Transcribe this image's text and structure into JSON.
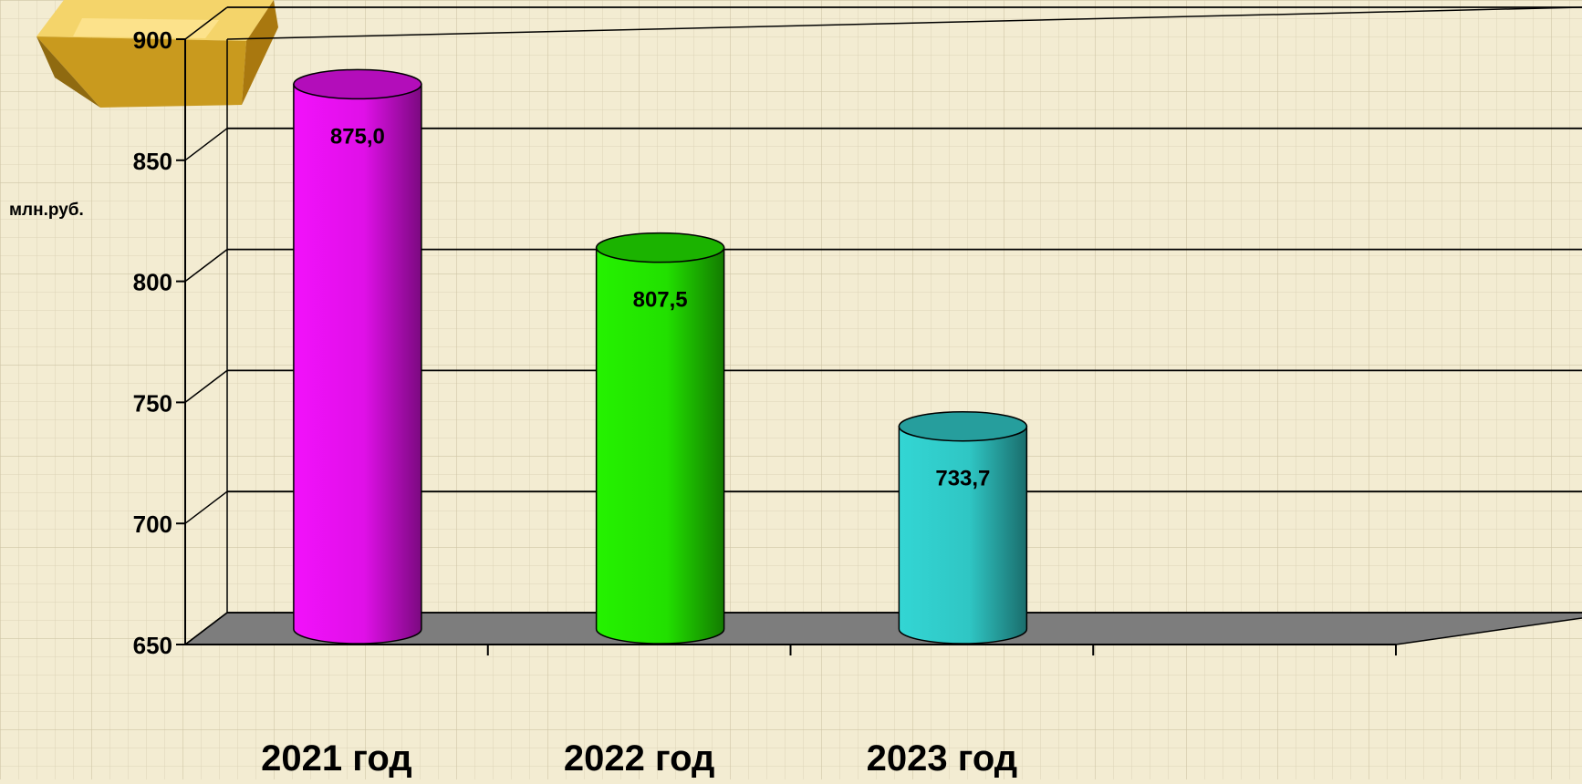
{
  "chart_data": {
    "type": "bar",
    "ylabel": "млн.руб.",
    "ylim": [
      650,
      900
    ],
    "yticks": [
      650,
      700,
      750,
      800,
      850,
      900
    ],
    "categories": [
      "2021 год",
      "2022 год",
      "2023 год"
    ],
    "values": [
      875.0,
      807.5,
      733.7
    ],
    "value_labels": [
      "875,0",
      "807,5",
      "733,7"
    ],
    "bar_colors": [
      "#e010e8",
      "#22e000",
      "#2fc6c4"
    ],
    "grid": true,
    "legend": "none"
  }
}
